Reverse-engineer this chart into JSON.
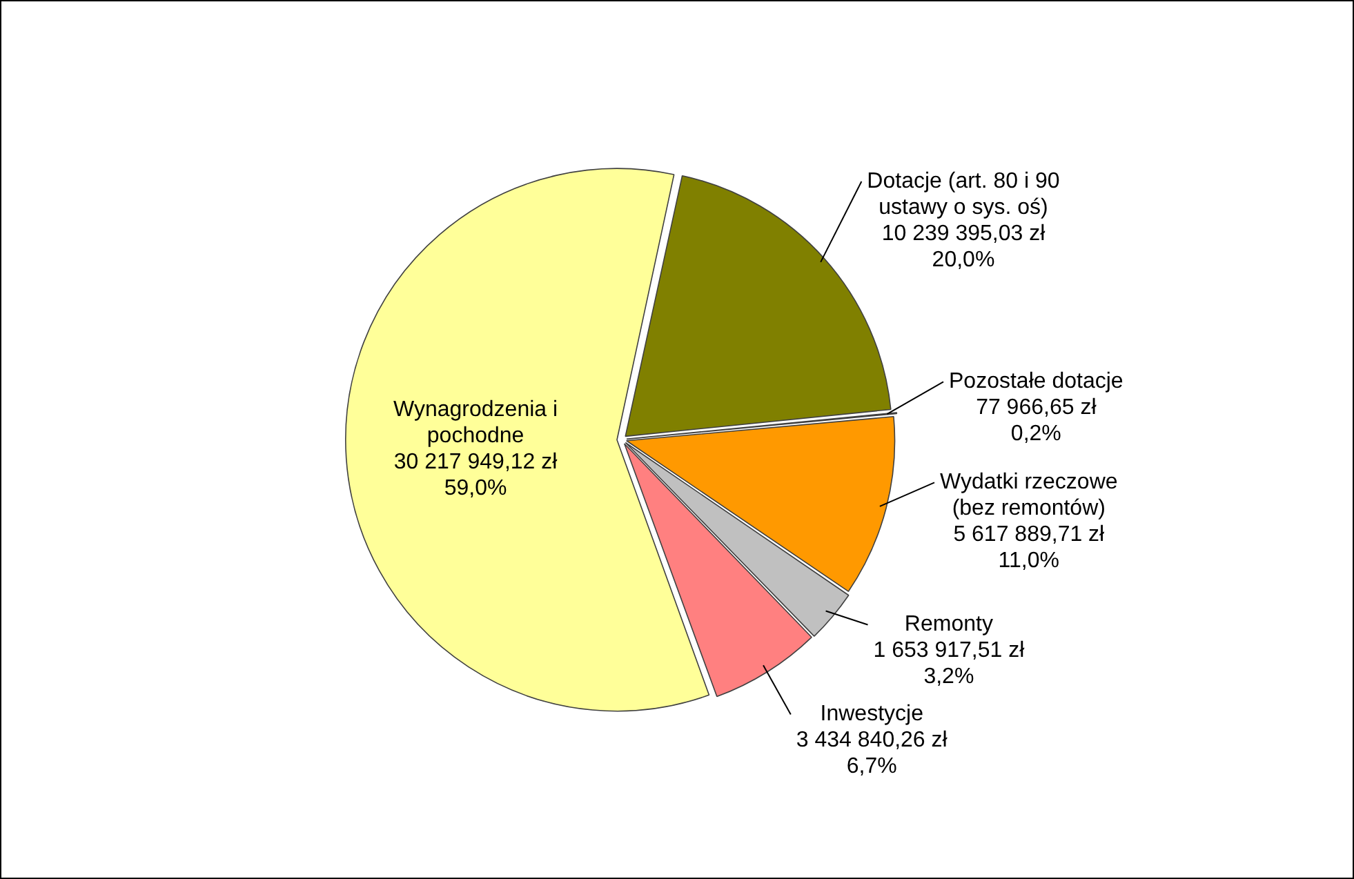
{
  "chart_data": {
    "type": "pie",
    "categories": [
      "Wynagrodzenia i pochodne",
      "Dotacje (art. 80 i 90 ustawy o sys. oś)",
      "Pozostałe dotacje",
      "Wydatki rzeczowe (bez remontów)",
      "Remonty",
      "Inwestycje"
    ],
    "values": [
      30217949.12,
      10239395.03,
      77966.65,
      5617889.71,
      1653917.51,
      3434840.26
    ],
    "value_labels": [
      "30 217 949,12 zł\n59,0%",
      "10 239 395,03 zł\n20,0%",
      "77 966,65 zł\n0,2%",
      "5 617 889,71 zł\n11,0%",
      "1 653 917,51 zł\n3,2%",
      "3 434 840,26 zł\n6,7%"
    ],
    "colors": [
      "#ffff99",
      "#808000",
      "#800000",
      "#ff9900",
      "#c0c0c0",
      "#ff8080"
    ]
  }
}
